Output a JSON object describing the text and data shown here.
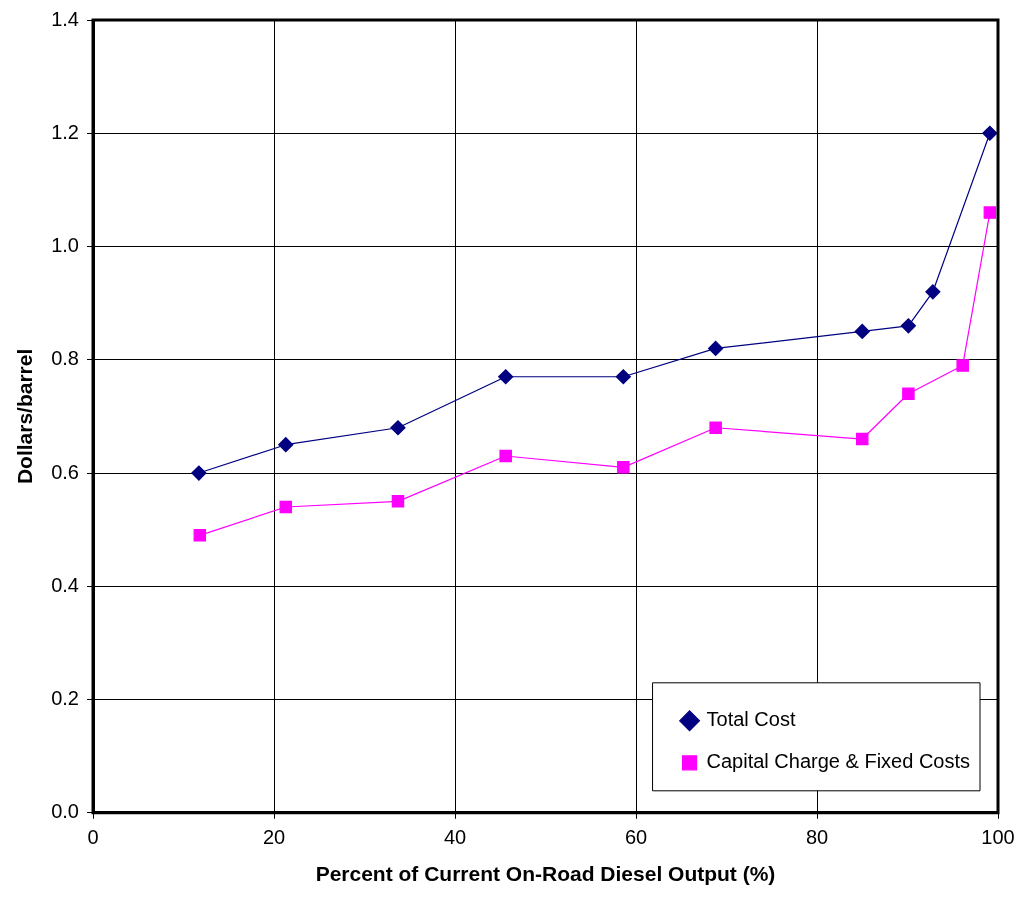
{
  "chart_data": {
    "type": "line",
    "xlabel": "Percent of Current On-Road Diesel Output (%)",
    "ylabel": "Dollars/barrel",
    "xlim": [
      0,
      100
    ],
    "xticks": [
      0,
      20,
      40,
      60,
      80,
      100
    ],
    "ylim": [
      0,
      1.4
    ],
    "yticks": [
      {
        "value": 0,
        "label": "0.0"
      },
      {
        "value": 0.2,
        "label": "0.2"
      },
      {
        "value": 0.4,
        "label": "0.4"
      },
      {
        "value": 0.6,
        "label": "0.6"
      },
      {
        "value": 0.8,
        "label": "0.8"
      },
      {
        "value": 1,
        "label": "1.0"
      },
      {
        "value": 1.2,
        "label": "1.2"
      },
      {
        "value": 1.4,
        "label": "1.4"
      }
    ],
    "grid": true,
    "legend": "bottom right",
    "line_style": "solid",
    "series": [
      {
        "name": "Total Cost",
        "color": "#000080",
        "marker": "diamond",
        "x": [
          11.7,
          21.3,
          33.7,
          45.6,
          58.6,
          68.8,
          85.0,
          90.1,
          92.8,
          99.1
        ],
        "values": [
          0.6,
          0.65,
          0.68,
          0.77,
          0.77,
          0.82,
          0.85,
          0.86,
          0.92,
          1.2
        ]
      },
      {
        "name": "Capital Charge & Fixed Costs",
        "color": "#ff00ff",
        "marker": "square",
        "x": [
          11.8,
          21.3,
          33.7,
          45.6,
          58.6,
          68.8,
          85.0,
          90.1,
          96.1,
          99.1
        ],
        "values": [
          0.49,
          0.54,
          0.55,
          0.63,
          0.61,
          0.68,
          0.66,
          0.74,
          0.79,
          1.06
        ]
      }
    ]
  }
}
